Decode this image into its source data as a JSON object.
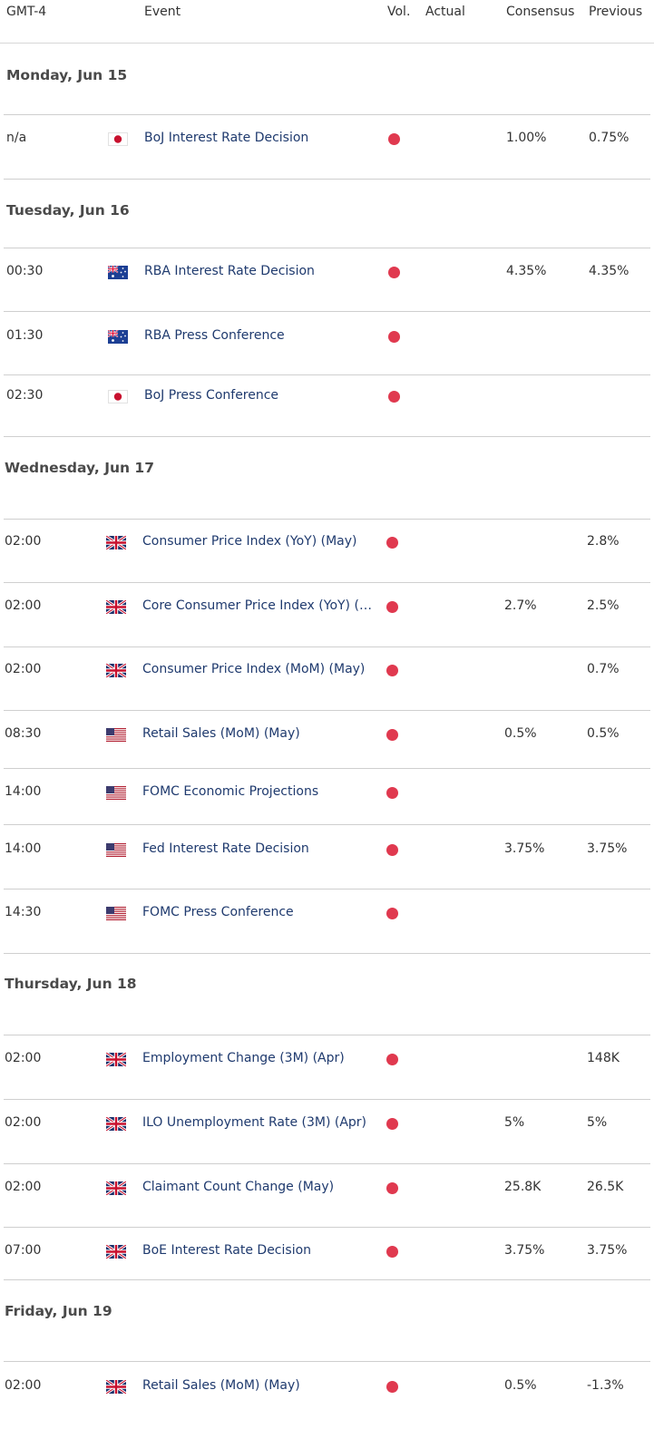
{
  "header": {
    "timezone": "GMT-4",
    "event": "Event",
    "vol": "Vol.",
    "actual": "Actual",
    "consensus": "Consensus",
    "previous": "Previous"
  },
  "colors": {
    "volatility_high": "#e0394f",
    "event_text": "#1f3a6e",
    "divider": "#cfcfcf"
  },
  "days": [
    {
      "label": "Monday, Jun 15",
      "events": [
        {
          "time": "n/a",
          "flag": "japan-flag-icon",
          "name": "BoJ Interest Rate Decision",
          "actual": "",
          "consensus": "1.00%",
          "previous": "0.75%"
        }
      ]
    },
    {
      "label": "Tuesday, Jun 16",
      "events": [
        {
          "time": "00:30",
          "flag": "australia-flag-icon",
          "name": "RBA Interest Rate Decision",
          "actual": "",
          "consensus": "4.35%",
          "previous": "4.35%"
        },
        {
          "time": "01:30",
          "flag": "australia-flag-icon",
          "name": "RBA Press Conference",
          "actual": "",
          "consensus": "",
          "previous": ""
        },
        {
          "time": "02:30",
          "flag": "japan-flag-icon",
          "name": "BoJ Press Conference",
          "actual": "",
          "consensus": "",
          "previous": ""
        }
      ]
    },
    {
      "label": "Wednesday, Jun 17",
      "events": [
        {
          "time": "02:00",
          "flag": "uk-flag-icon",
          "name": "Consumer Price Index (YoY) (May)",
          "actual": "",
          "consensus": "",
          "previous": "2.8%"
        },
        {
          "time": "02:00",
          "flag": "uk-flag-icon",
          "name": "Core Consumer Price Index (YoY) (M…",
          "actual": "",
          "consensus": "2.7%",
          "previous": "2.5%"
        },
        {
          "time": "02:00",
          "flag": "uk-flag-icon",
          "name": "Consumer Price Index (MoM) (May)",
          "actual": "",
          "consensus": "",
          "previous": "0.7%"
        },
        {
          "time": "08:30",
          "flag": "us-flag-icon",
          "name": "Retail Sales (MoM) (May)",
          "actual": "",
          "consensus": "0.5%",
          "previous": "0.5%"
        },
        {
          "time": "14:00",
          "flag": "us-flag-icon",
          "name": "FOMC Economic Projections",
          "actual": "",
          "consensus": "",
          "previous": ""
        },
        {
          "time": "14:00",
          "flag": "us-flag-icon",
          "name": "Fed Interest Rate Decision",
          "actual": "",
          "consensus": "3.75%",
          "previous": "3.75%"
        },
        {
          "time": "14:30",
          "flag": "us-flag-icon",
          "name": "FOMC Press Conference",
          "actual": "",
          "consensus": "",
          "previous": ""
        }
      ]
    },
    {
      "label": "Thursday, Jun 18",
      "events": [
        {
          "time": "02:00",
          "flag": "uk-flag-icon",
          "name": "Employment Change (3M) (Apr)",
          "actual": "",
          "consensus": "",
          "previous": "148K"
        },
        {
          "time": "02:00",
          "flag": "uk-flag-icon",
          "name": "ILO Unemployment Rate (3M) (Apr)",
          "actual": "",
          "consensus": "5%",
          "previous": "5%"
        },
        {
          "time": "02:00",
          "flag": "uk-flag-icon",
          "name": "Claimant Count Change (May)",
          "actual": "",
          "consensus": "25.8K",
          "previous": "26.5K"
        },
        {
          "time": "07:00",
          "flag": "uk-flag-icon",
          "name": "BoE Interest Rate Decision",
          "actual": "",
          "consensus": "3.75%",
          "previous": "3.75%"
        }
      ]
    },
    {
      "label": "Friday, Jun 19",
      "events": [
        {
          "time": "02:00",
          "flag": "uk-flag-icon",
          "name": "Retail Sales (MoM) (May)",
          "actual": "",
          "consensus": "0.5%",
          "previous": "-1.3%"
        }
      ]
    }
  ]
}
